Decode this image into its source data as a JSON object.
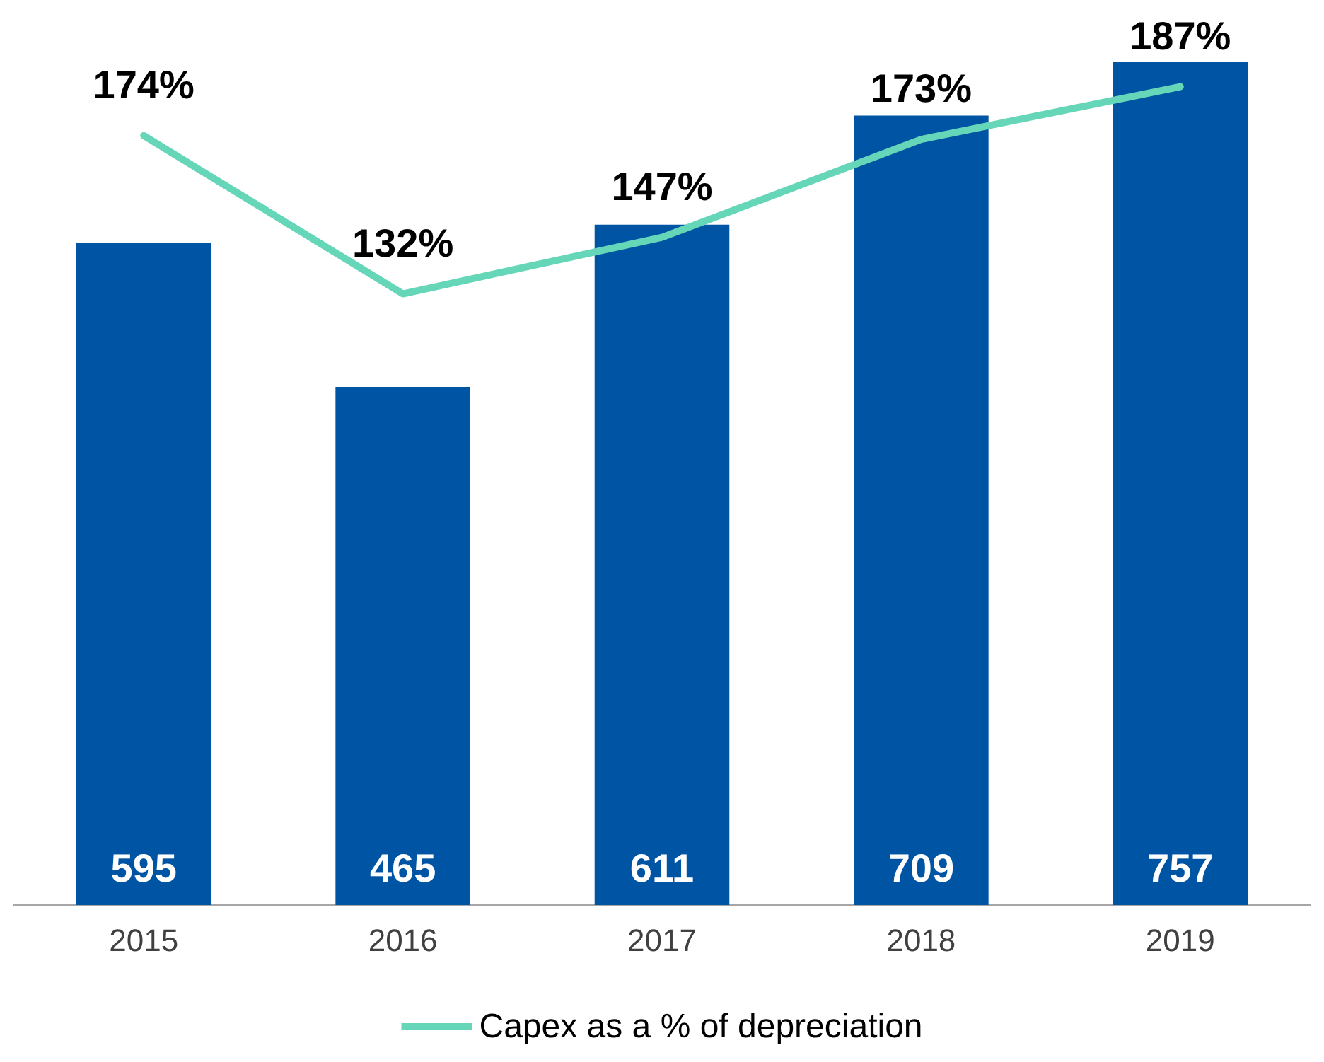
{
  "chart_data": {
    "type": "bar",
    "categories": [
      "2015",
      "2016",
      "2017",
      "2018",
      "2019"
    ],
    "series": [
      {
        "color": "#0054a4",
        "values": [
          595,
          465,
          611,
          709,
          757
        ]
      },
      {
        "type": "line",
        "axis": "y2",
        "name": "Capex as a % of depreciation",
        "color": "#66d6b9",
        "values": [
          174,
          132,
          147,
          173,
          187
        ],
        "value_labels": [
          "174%",
          "132%",
          "147%",
          "173%",
          "187%"
        ]
      }
    ],
    "tick_labels": "x",
    "data_labels": true,
    "grid": false,
    "legend": "bottom",
    "marker": "none",
    "line_style": "solid"
  }
}
